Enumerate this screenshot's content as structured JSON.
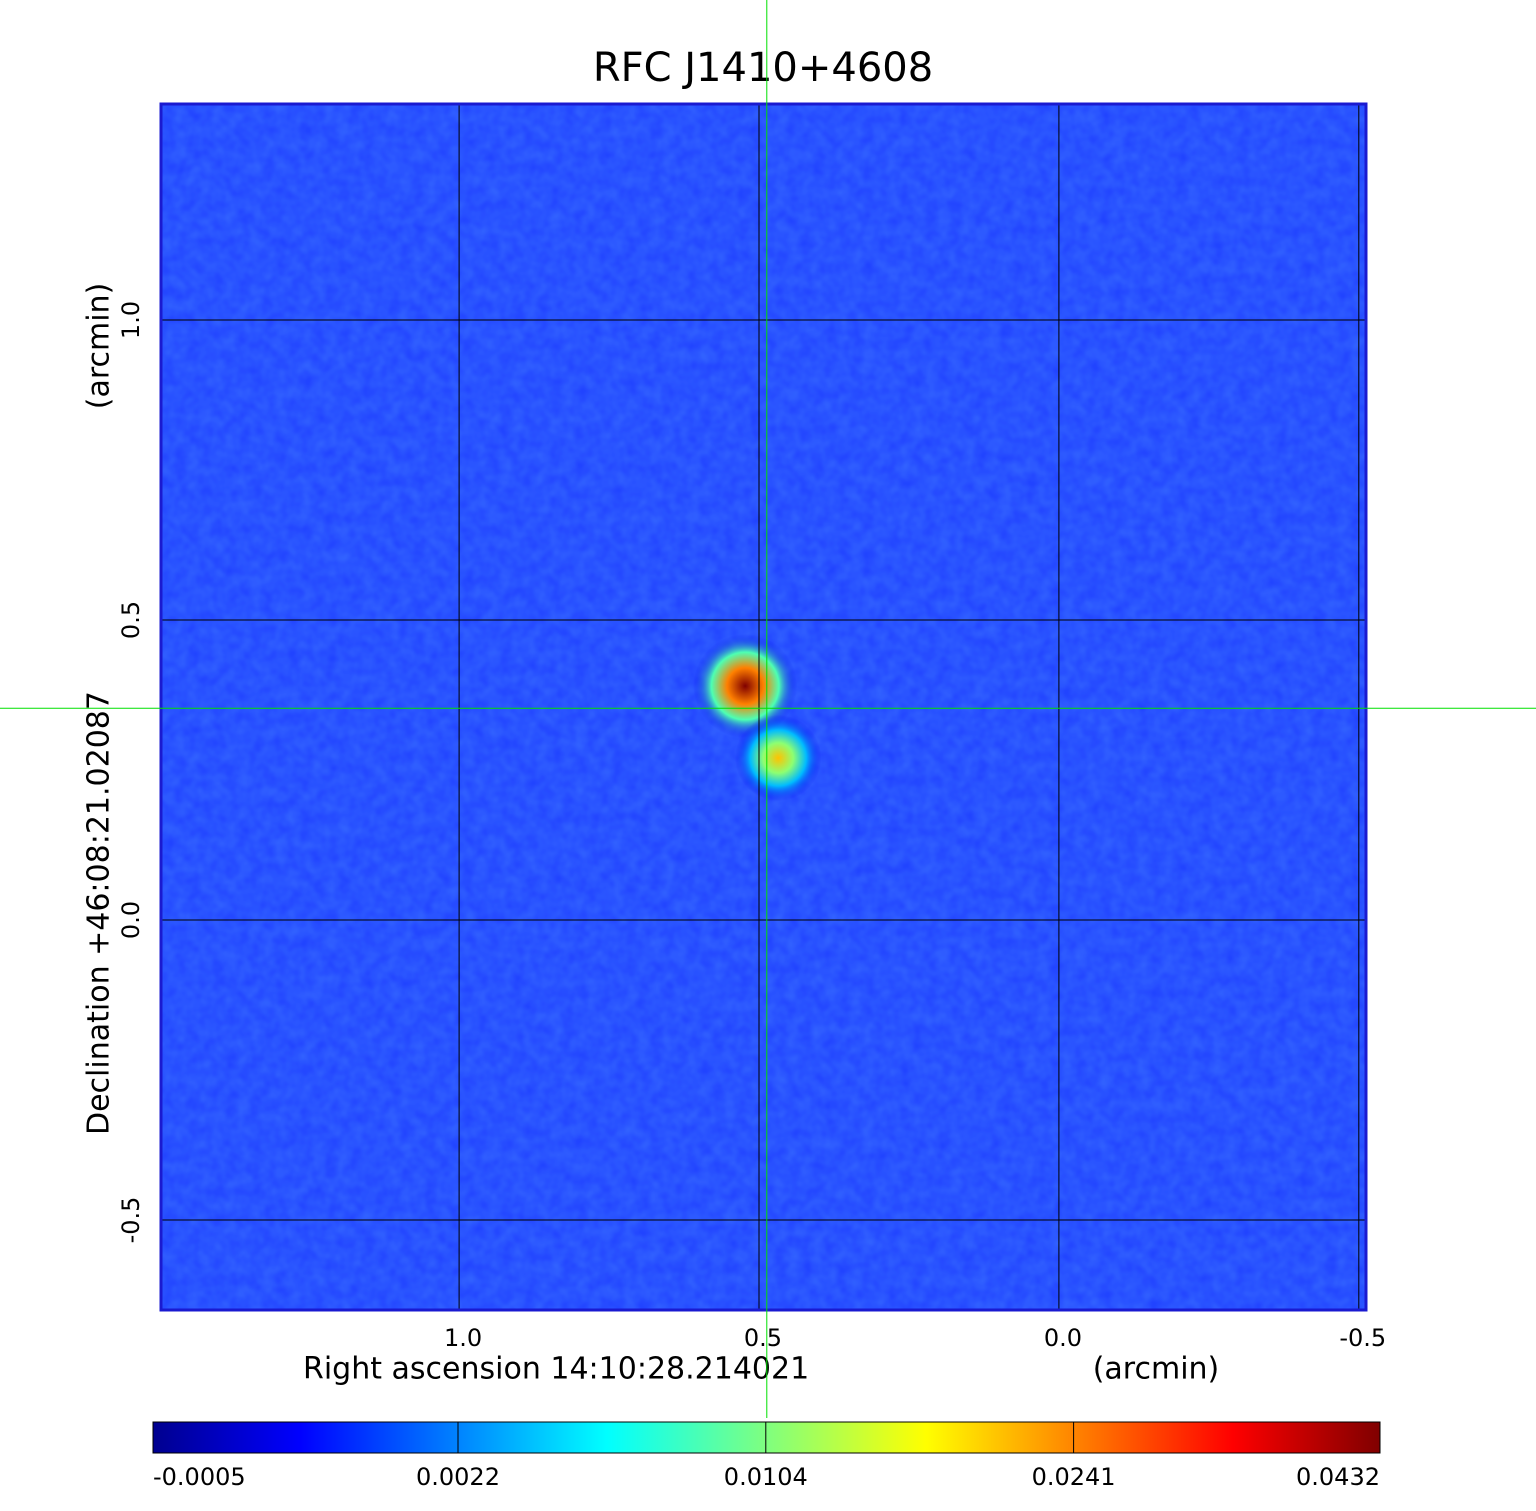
{
  "chart_data": {
    "type": "image",
    "title": "RFC J1410+4608",
    "title_color": "#1a1ad0",
    "frame_color": "#1a1ad0",
    "background_color": "#1f40ff",
    "x_label": "Right ascension  14:10:28.214021",
    "x_unit": "(arcmin)",
    "y_label": "Declination  +46:08:21.02087",
    "y_unit": "(arcmin)",
    "xlim": [
      1.497,
      -0.512
    ],
    "ylim": [
      -0.65,
      1.36
    ],
    "xticks": [
      {
        "value": 1,
        "label": "1.0"
      },
      0.5,
      {
        "value": 0,
        "label": "0.0"
      },
      -0.5
    ],
    "yticks": [
      {
        "value": 1,
        "label": "1.0"
      },
      0.5,
      {
        "value": 0,
        "label": "0.0"
      },
      -0.5
    ],
    "grid": true,
    "sources": [
      {
        "x": 0.523,
        "y": 0.39,
        "peak": 0.0432
      },
      {
        "x": 0.468,
        "y": 0.27,
        "peak": 0.02
      }
    ],
    "marker": {
      "x": 0.487,
      "y": 0.353,
      "color": "#00e000"
    },
    "colorbar": {
      "lim": [
        -0.0005,
        0.0432
      ],
      "scale": "sqrt",
      "ticks": [
        -0.0005,
        0.0022,
        0.0104,
        0.0241,
        0.0432
      ]
    }
  }
}
